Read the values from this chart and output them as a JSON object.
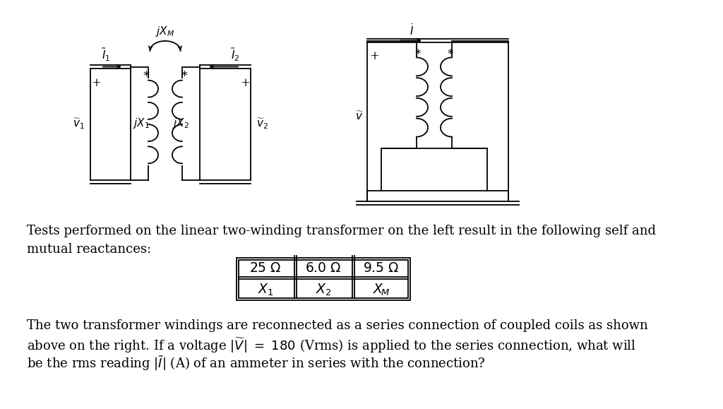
{
  "bg_color": "#ffffff",
  "paragraph1_line1": "Tests performed on the linear two-winding transformer on the left result in the following self and",
  "paragraph1_line2": "mutual reactances:",
  "table_headers": [
    "X_1",
    "X_2",
    "X_M"
  ],
  "table_values": [
    "25 Ω",
    "6.0 Ω",
    "9.5 Ω"
  ],
  "paragraph2_line1": "The two transformer windings are reconnected as a series connection of coupled coils as shown",
  "paragraph2_line2": "above on the right. If a voltage |V| = 180 (Vrms) is applied to the series connection, what will",
  "paragraph2_line3": "be the rms reading |I| (A) of an ammeter in series with the connection?",
  "font_size_body": 13.0,
  "font_size_table": 13.5,
  "lw": 1.3
}
